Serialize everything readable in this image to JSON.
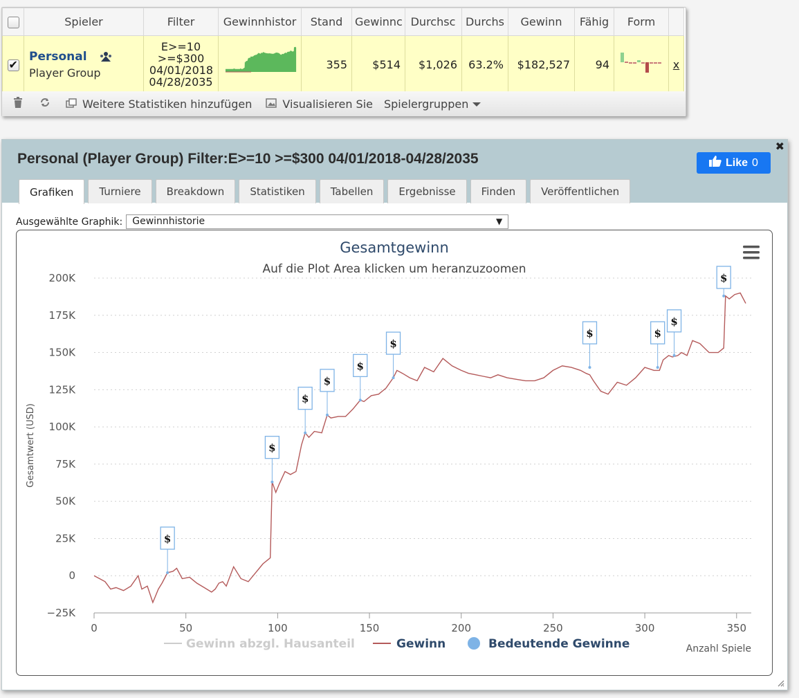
{
  "table": {
    "headers": [
      "Spieler",
      "Filter",
      "Gewinnhistor",
      "Stand",
      "Gewinnс",
      "Durchsc",
      "Durchs",
      "Gewinn",
      "Fähig",
      "Form"
    ],
    "row": {
      "checked": true,
      "player_name": "Personal",
      "player_sub": "Player Group",
      "filter_lines": [
        "E>=10",
        ">=$300",
        "04/01/2018",
        "04/28/2035"
      ],
      "stand": "355",
      "gewinnc": "$514",
      "durchsc": "$1,026",
      "durchs": "63.2%",
      "gewinn": "$182,527",
      "faehig": "94",
      "remove_link": "x"
    }
  },
  "toolbar": {
    "add_stats": "Weitere Statistiken hinzufügen",
    "visualize": "Visualisieren Sie",
    "groups": "Spielergruppen"
  },
  "detail": {
    "title": "Personal (Player Group) Filter:E>=10 >=$300 04/01/2018-04/28/2035",
    "like_label": "Like",
    "like_count": "0",
    "tabs": [
      "Grafiken",
      "Turniere",
      "Breakdown",
      "Statistiken",
      "Tabellen",
      "Ergebnisse",
      "Finden",
      "Veröffentlichen"
    ],
    "active_tab": "Grafiken",
    "graph_select_label": "Ausgewählte Graphik:",
    "graph_select_value": "Gewinnhistorie"
  },
  "colors": {
    "line": "#b45a5a",
    "marker": "#7eb3e6",
    "title": "#2f4a6b",
    "header_bg": "#b6cbd1",
    "like": "#1877f2",
    "row_bg": "#ffffc6"
  },
  "chart_data": {
    "type": "line",
    "title": "Gesamtgewinn",
    "subtitle": "Auf die Plot Area klicken um heranzuzoomen",
    "xlabel": "Anzahl Spiele",
    "ylabel": "Gesamtwert (USD)",
    "xlim": [
      0,
      358
    ],
    "ylim": [
      -25000,
      200000
    ],
    "x_ticks": [
      0,
      50,
      100,
      150,
      200,
      250,
      300,
      350
    ],
    "y_ticks": [
      -25000,
      0,
      25000,
      50000,
      75000,
      100000,
      125000,
      150000,
      175000,
      200000
    ],
    "y_tick_labels": [
      "−25K",
      "0",
      "25K",
      "50K",
      "75K",
      "100K",
      "125K",
      "150K",
      "175K",
      "200K"
    ],
    "legend": [
      "Gewinn abzgl. Hausanteil",
      "Gewinn",
      "Bedeutende Gewinne"
    ],
    "legend_position": "bottom",
    "series": [
      {
        "name": "Gewinn",
        "x": [
          0,
          3,
          6,
          9,
          12,
          16,
          20,
          24,
          26,
          29,
          32,
          33,
          35,
          37,
          40,
          43,
          45,
          48,
          52,
          56,
          60,
          64,
          66,
          68,
          70,
          72,
          76,
          80,
          84,
          88,
          90,
          92,
          94,
          96,
          97,
          99,
          101,
          104,
          107,
          110,
          113,
          115,
          117,
          120,
          124,
          127,
          129,
          133,
          137,
          141,
          145,
          147,
          151,
          155,
          159,
          163,
          165,
          168,
          172,
          176,
          180,
          185,
          190,
          195,
          200,
          204,
          208,
          212,
          216,
          220,
          225,
          230,
          235,
          240,
          245,
          250,
          255,
          260,
          265,
          268,
          270,
          272,
          276,
          280,
          285,
          290,
          295,
          300,
          305,
          308,
          310,
          313,
          315,
          318,
          320,
          323,
          326,
          330,
          335,
          340,
          343,
          344,
          346,
          349,
          352,
          355
        ],
        "y": [
          0,
          -2000,
          -4000,
          -9000,
          -8000,
          -10000,
          -7000,
          0,
          -9000,
          -7000,
          -18000,
          -15000,
          -9000,
          -5000,
          2000,
          3000,
          5000,
          -2000,
          -1000,
          -5000,
          -8000,
          -11000,
          -9000,
          -5000,
          -4000,
          -7000,
          6000,
          -2000,
          -4000,
          2000,
          5000,
          8000,
          10000,
          12000,
          63000,
          56000,
          62000,
          70000,
          68000,
          70000,
          88000,
          96000,
          93000,
          97000,
          96000,
          108000,
          106000,
          107000,
          107000,
          112000,
          118000,
          117000,
          121000,
          122000,
          126000,
          133000,
          138000,
          136000,
          133000,
          131000,
          140000,
          137000,
          146000,
          141000,
          138000,
          136000,
          135000,
          134000,
          133000,
          135000,
          133000,
          132000,
          131000,
          131000,
          133000,
          138000,
          141000,
          140000,
          138000,
          136000,
          135000,
          131000,
          124000,
          122000,
          130000,
          128000,
          133000,
          140000,
          138000,
          138000,
          145000,
          148000,
          147000,
          148000,
          150000,
          148000,
          158000,
          156000,
          150000,
          150000,
          153000,
          188000,
          186000,
          189000,
          190000,
          183000
        ]
      },
      {
        "name": "Bedeutende Gewinne",
        "x": [
          40,
          97,
          115,
          127,
          145,
          163,
          270,
          307,
          316,
          343
        ],
        "y": [
          2000,
          63000,
          96000,
          108000,
          118000,
          133000,
          140000,
          140000,
          148000,
          188000
        ]
      }
    ]
  }
}
